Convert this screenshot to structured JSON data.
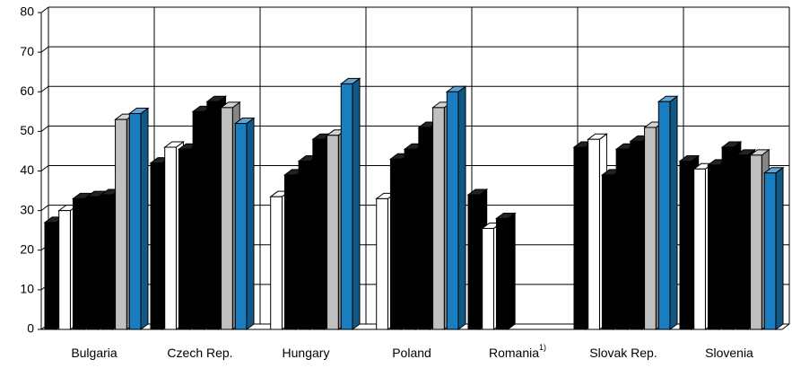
{
  "chart_data": {
    "type": "bar3d",
    "categories": [
      "Bulgaria",
      "Czech Rep.",
      "Hungary",
      "Poland",
      "Romania",
      "Slovak Rep.",
      "Slovenia"
    ],
    "category_footnotes": [
      null,
      null,
      null,
      null,
      "1)",
      null,
      null
    ],
    "series": [
      {
        "color": "#000000",
        "values": [
          27,
          42,
          null,
          null,
          34,
          46,
          42.5
        ]
      },
      {
        "color": "#ffffff",
        "values": [
          30,
          46,
          33.5,
          33,
          25.5,
          48,
          40.5
        ]
      },
      {
        "color": "#000000",
        "values": [
          33,
          45.5,
          39,
          43,
          28,
          39,
          41.5
        ]
      },
      {
        "color": "#000000",
        "values": [
          33.5,
          55,
          42.5,
          45.5,
          null,
          45.5,
          46
        ]
      },
      {
        "color": "#000000",
        "values": [
          34,
          57.5,
          48,
          51,
          null,
          47.5,
          44
        ]
      },
      {
        "color": "#c0c0c0",
        "values": [
          53,
          56,
          49,
          56,
          null,
          51,
          44
        ]
      },
      {
        "color": "#1a7dc0",
        "values": [
          54.5,
          52,
          62,
          60,
          null,
          57.5,
          39.5
        ]
      }
    ],
    "ylim": [
      0,
      80
    ],
    "yticks": [
      0,
      10,
      20,
      30,
      40,
      50,
      60,
      70,
      80
    ],
    "grid": true
  }
}
